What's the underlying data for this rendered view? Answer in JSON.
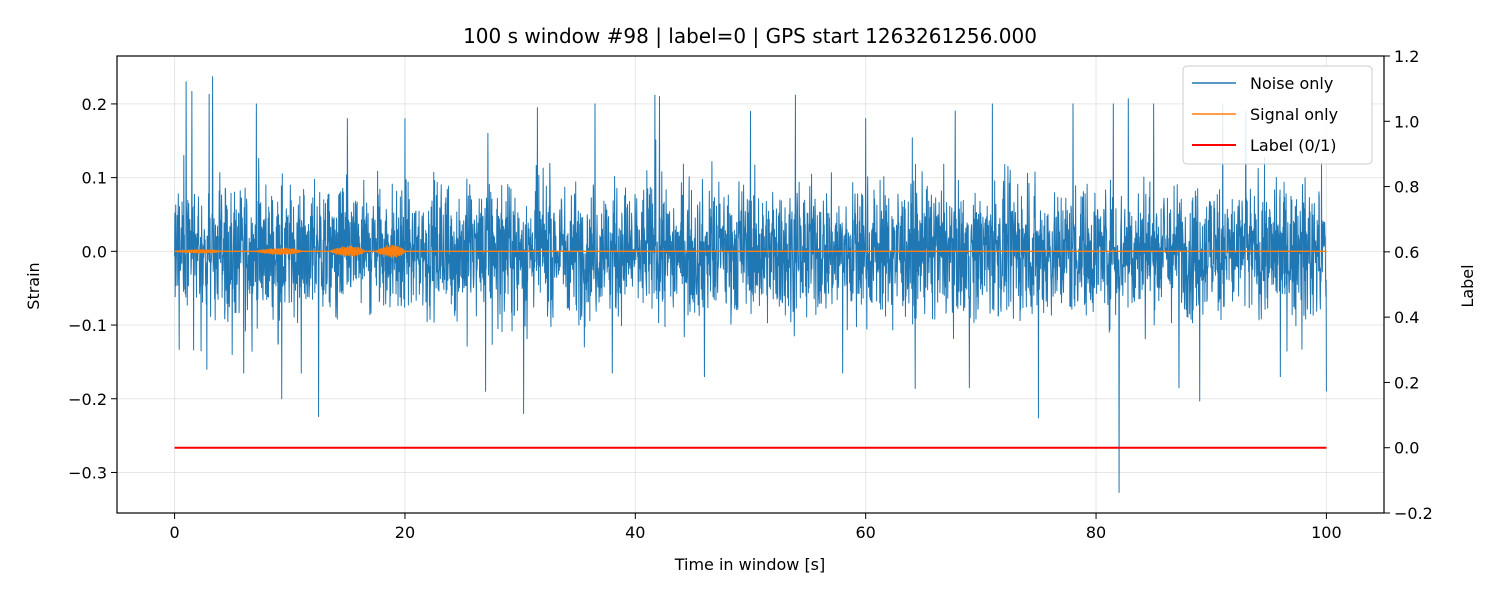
{
  "chart_data": {
    "type": "line",
    "title": "100 s window #98 | label=0 | GPS start 1263261256.000",
    "xlabel": "Time in window [s]",
    "ylabel": "Strain",
    "y2label": "Label",
    "xlim": [
      -5,
      105
    ],
    "ylim": [
      -0.355,
      0.265
    ],
    "y2lim": [
      -0.2,
      1.2
    ],
    "xticks": [
      0,
      20,
      40,
      60,
      80,
      100
    ],
    "xtick_labels": [
      "0",
      "20",
      "40",
      "60",
      "80",
      "100"
    ],
    "yticks": [
      0.2,
      0.1,
      0.0,
      -0.1,
      -0.2,
      -0.3
    ],
    "ytick_labels": [
      "0.2",
      "0.1",
      "0.0",
      "−0.1",
      "−0.2",
      "−0.3"
    ],
    "y2ticks": [
      1.2,
      1.0,
      0.8,
      0.6,
      0.4,
      0.2,
      0.0,
      -0.2
    ],
    "y2tick_labels": [
      "1.2",
      "1.0",
      "0.8",
      "0.6",
      "0.4",
      "0.2",
      "0.0",
      "−0.2"
    ],
    "grid": true,
    "legend_position": "top-right",
    "series": [
      {
        "name": "Noise only",
        "axis": "left",
        "color": "#1f77b4",
        "x_range": [
          0,
          100
        ],
        "envelope": {
          "typical": 0.07,
          "max": 0.237,
          "min": -0.327
        },
        "spikes": [
          {
            "x": 0.8,
            "y": 0.13
          },
          {
            "x": 0.4,
            "y": -0.133
          },
          {
            "x": 1.0,
            "y": 0.23
          },
          {
            "x": 1.5,
            "y": 0.217
          },
          {
            "x": 2.3,
            "y": -0.135
          },
          {
            "x": 2.8,
            "y": -0.16
          },
          {
            "x": 3.0,
            "y": 0.213
          },
          {
            "x": 3.3,
            "y": 0.237
          },
          {
            "x": 5.0,
            "y": -0.14
          },
          {
            "x": 6.0,
            "y": -0.165
          },
          {
            "x": 7.1,
            "y": 0.2
          },
          {
            "x": 9.3,
            "y": -0.2
          },
          {
            "x": 11.0,
            "y": -0.165
          },
          {
            "x": 12.5,
            "y": -0.224
          },
          {
            "x": 15.0,
            "y": 0.18
          },
          {
            "x": 20.0,
            "y": 0.18
          },
          {
            "x": 27.0,
            "y": -0.19
          },
          {
            "x": 30.3,
            "y": -0.22
          },
          {
            "x": 31.5,
            "y": 0.195
          },
          {
            "x": 36.5,
            "y": 0.2
          },
          {
            "x": 38.0,
            "y": -0.165
          },
          {
            "x": 41.7,
            "y": 0.212
          },
          {
            "x": 42.1,
            "y": 0.21
          },
          {
            "x": 46.0,
            "y": -0.17
          },
          {
            "x": 50.0,
            "y": 0.19
          },
          {
            "x": 53.9,
            "y": 0.212
          },
          {
            "x": 58.0,
            "y": -0.165
          },
          {
            "x": 60.0,
            "y": 0.18
          },
          {
            "x": 64.3,
            "y": -0.186
          },
          {
            "x": 69.0,
            "y": -0.185
          },
          {
            "x": 71.0,
            "y": 0.2
          },
          {
            "x": 75.0,
            "y": -0.226
          },
          {
            "x": 78.0,
            "y": 0.2
          },
          {
            "x": 81.5,
            "y": 0.2
          },
          {
            "x": 82.0,
            "y": -0.327
          },
          {
            "x": 82.8,
            "y": 0.207
          },
          {
            "x": 85.0,
            "y": 0.2
          },
          {
            "x": 87.2,
            "y": -0.185
          },
          {
            "x": 89.0,
            "y": -0.203
          },
          {
            "x": 91.0,
            "y": 0.2
          },
          {
            "x": 93.0,
            "y": 0.19
          },
          {
            "x": 96.0,
            "y": -0.17
          },
          {
            "x": 100.0,
            "y": -0.19
          }
        ]
      },
      {
        "name": "Signal only",
        "axis": "left",
        "color": "#ff7f0e",
        "x_range": [
          0,
          100
        ],
        "bursts": [
          {
            "start": 0.0,
            "end": 4.0,
            "amp": 0.003
          },
          {
            "start": 7.0,
            "end": 11.0,
            "amp": 0.006
          },
          {
            "start": 13.5,
            "end": 16.5,
            "amp": 0.01
          },
          {
            "start": 17.5,
            "end": 20.0,
            "amp": 0.012
          }
        ]
      },
      {
        "name": "Label (0/1)",
        "axis": "right",
        "color": "#ff0000",
        "x": [
          0,
          100
        ],
        "values": [
          0,
          0
        ]
      }
    ]
  }
}
